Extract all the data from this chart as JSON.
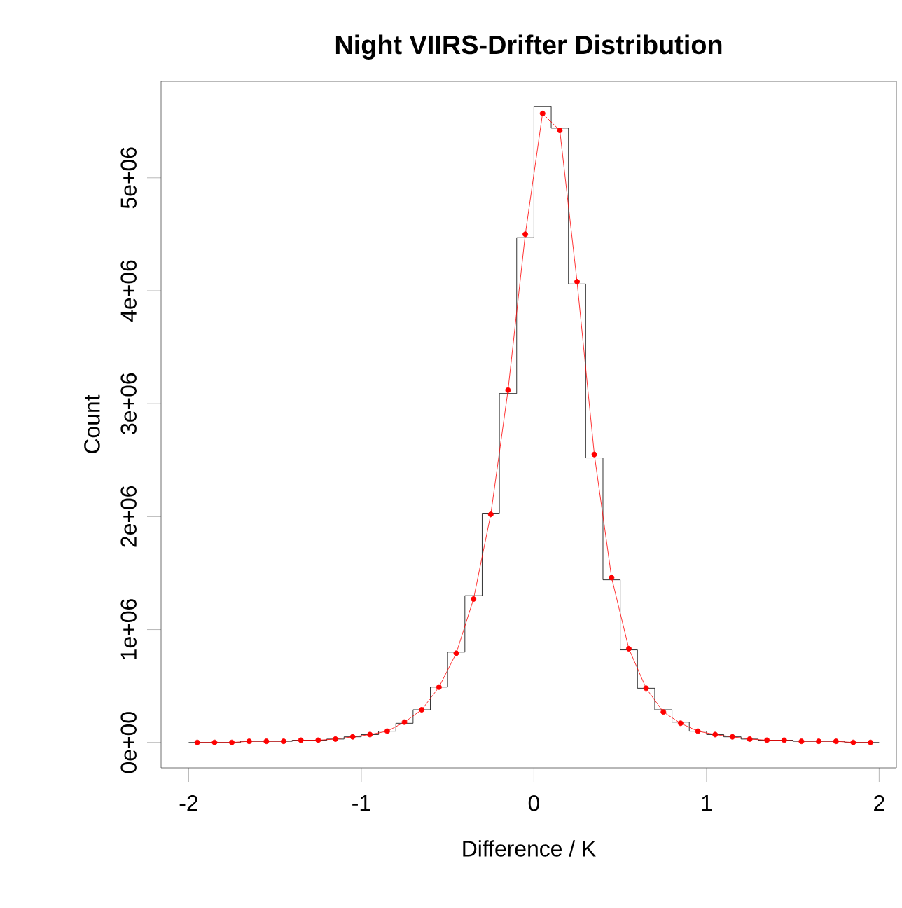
{
  "chart_data": {
    "type": "histogram",
    "title": "Night VIIRS-Drifter Distribution",
    "xlabel": "Difference / K",
    "ylabel": "Count",
    "bins": [
      -2,
      -1.9,
      -1.8,
      -1.7,
      -1.6,
      -1.5,
      -1.4,
      -1.3,
      -1.2,
      -1.1,
      -1,
      -0.9,
      -0.8,
      -0.7,
      -0.6,
      -0.5,
      -0.4,
      -0.3,
      -0.2,
      -0.1,
      0,
      0.1,
      0.2,
      0.3,
      0.4,
      0.5,
      0.6,
      0.7,
      0.8,
      0.9,
      1,
      1.1,
      1.2,
      1.3,
      1.4,
      1.5,
      1.6,
      1.7,
      1.8,
      1.9,
      2
    ],
    "series": [
      {
        "color": "#000000",
        "values": [
          0,
          0,
          0,
          10000,
          10000,
          10000,
          20000,
          20000,
          30000,
          50000,
          70000,
          100000,
          170000,
          290000,
          490000,
          800000,
          1300000,
          2030000,
          3090000,
          4470000,
          5630000,
          5440000,
          4060000,
          2520000,
          1440000,
          820000,
          480000,
          290000,
          180000,
          100000,
          70000,
          50000,
          30000,
          20000,
          20000,
          10000,
          10000,
          10000,
          0,
          0
        ]
      },
      {
        "type": "line",
        "color": "#ff0000",
        "marker": "circle",
        "x": [
          -1.95,
          -1.85,
          -1.75,
          -1.65,
          -1.55,
          -1.45,
          -1.35,
          -1.25,
          -1.15,
          -1.05,
          -0.95,
          -0.85,
          -0.75,
          -0.65,
          -0.55,
          -0.45,
          -0.35,
          -0.25,
          -0.15,
          -0.05,
          0.05,
          0.15,
          0.25,
          0.35,
          0.45,
          0.55,
          0.65,
          0.75,
          0.85,
          0.95,
          1.05,
          1.15,
          1.25,
          1.35,
          1.45,
          1.55,
          1.65,
          1.75,
          1.85,
          1.95
        ],
        "values": [
          0,
          0,
          0,
          10000,
          10000,
          10000,
          20000,
          20000,
          30000,
          50000,
          70000,
          100000,
          180000,
          290000,
          490000,
          790000,
          1270000,
          2020000,
          3120000,
          4500000,
          5570000,
          5420000,
          4080000,
          2550000,
          1460000,
          830000,
          480000,
          270000,
          170000,
          100000,
          70000,
          50000,
          30000,
          20000,
          20000,
          10000,
          10000,
          10000,
          0,
          0
        ]
      }
    ],
    "xlim": [
      -2.16,
      2.1
    ],
    "ylim": [
      -225000,
      5855000
    ],
    "xticks": [
      -2,
      -1,
      0,
      1,
      2
    ],
    "yticks": [
      {
        "value": 0,
        "label": "0e+00"
      },
      {
        "value": 1000000,
        "label": "1e+06"
      },
      {
        "value": 2000000,
        "label": "2e+06"
      },
      {
        "value": 3000000,
        "label": "3e+06"
      },
      {
        "value": 4000000,
        "label": "4e+06"
      },
      {
        "value": 5000000,
        "label": "5e+06"
      }
    ]
  }
}
